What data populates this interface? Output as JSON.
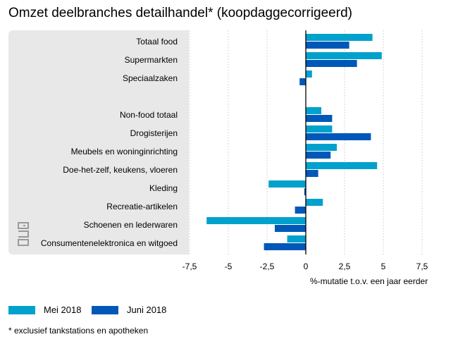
{
  "chart_data": {
    "type": "bar",
    "orientation": "horizontal",
    "title": "Omzet deelbranches detailhandel* (koopdaggecorrigeerd)",
    "xlabel": "%-mutatie t.o.v. een jaar eerder",
    "ylabel": "",
    "xlim": [
      -7.5,
      7.5
    ],
    "xticks": [
      "-7,5",
      "-5",
      "-2,5",
      "0",
      "2,5",
      "5",
      "7,5"
    ],
    "grid": true,
    "legend_position": "bottom-left",
    "categories": [
      "Totaal food",
      "Supermarkten",
      "Speciaalzaken",
      "",
      "Non-food totaal",
      "Drogisterijen",
      "Meubels en woninginrichting",
      "Doe-het-zelf, keukens, vloeren",
      "Kleding",
      "Recreatie-artikelen",
      "Schoenen en lederwaren",
      "Consumentenelektronica en witgoed"
    ],
    "series": [
      {
        "name": "Mei 2018",
        "color": "#00a1cd",
        "values": [
          4.3,
          4.9,
          0.4,
          null,
          1.0,
          1.7,
          2.0,
          4.6,
          -2.4,
          1.1,
          -6.4,
          -1.2
        ]
      },
      {
        "name": "Juni 2018",
        "color": "#0058b8",
        "values": [
          2.8,
          3.3,
          -0.4,
          null,
          1.7,
          4.2,
          1.6,
          0.8,
          -0.1,
          -0.7,
          -2.0,
          -2.7
        ]
      }
    ]
  },
  "footnote": "* exclusief tankstations en apotheken",
  "logo_icon": "cbs-logo-icon"
}
